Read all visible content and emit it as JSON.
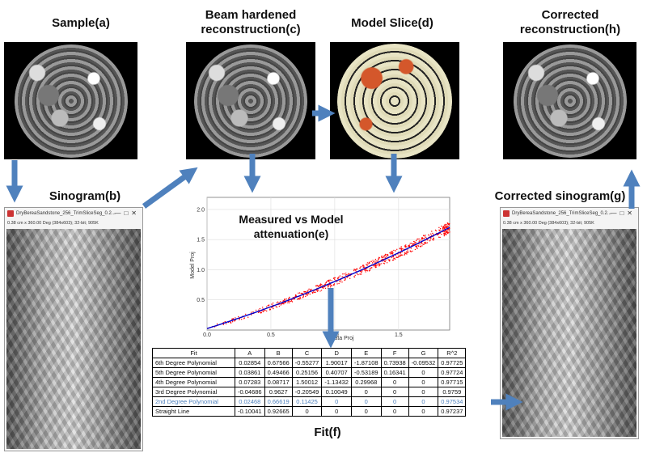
{
  "labels": {
    "sample": "Sample(a)",
    "beam1": "Beam hardened",
    "beam2": "reconstruction(c)",
    "model": "Model Slice(d)",
    "corr1": "Corrected",
    "corr2": "reconstruction(h)",
    "sinogram": "Sinogram(b)",
    "corr_sino": "Corrected sinogram(g)",
    "measured1": "Measured vs Model",
    "measured2": "attenuation(e)",
    "fit": "Fit(f)"
  },
  "windows": {
    "title": "DryBereaSandstone_256_TrimSliceSeg_0.2...",
    "info": "0.38 cm x 360.00 Deg (384x603); 32-bit; 905K",
    "controls": "—□✕"
  },
  "chart_data": {
    "type": "scatter",
    "xlabel": "Data Proj",
    "ylabel": "Model Proj",
    "xlim": [
      0,
      1.9
    ],
    "ylim": [
      0,
      2.2
    ],
    "xticks": [
      "0.0",
      "0.5",
      "1.0",
      "1.5"
    ],
    "yticks": [
      "0.5",
      "1.0",
      "1.5",
      "2.0"
    ],
    "grid": true,
    "points_series": {
      "name": "",
      "color": "#ff0000",
      "x_range": [
        0.0,
        1.95
      ]
    },
    "fit_line": {
      "name": "",
      "color": "#0000cc",
      "fit": "2nd Degree Polynomial",
      "coefficients": [
        0.02468,
        0.66619,
        0.11425
      ]
    }
  },
  "fit_table": {
    "headers": [
      "Fit",
      "A",
      "B",
      "C",
      "D",
      "E",
      "F",
      "G",
      "R^2"
    ],
    "rows": [
      [
        "6th Degree Polynomial",
        "0.02854",
        "0.67566",
        "-0.55277",
        "1.90017",
        "-1.87108",
        "0.73938",
        "-0.09532",
        "0.97725"
      ],
      [
        "5th Degree Polynomial",
        "0.03861",
        "0.49466",
        "0.25156",
        "0.40707",
        "-0.53189",
        "0.16341",
        "0",
        "0.97724"
      ],
      [
        "4th Degree Polynomial",
        "0.07283",
        "0.08717",
        "1.50012",
        "-1.13432",
        "0.29968",
        "0",
        "0",
        "0.97715"
      ],
      [
        "3rd Degree Polynomial",
        "-0.04686",
        "0.9627",
        "-0.20549",
        "0.10049",
        "0",
        "0",
        "0",
        "0.9759"
      ],
      [
        "2nd Degree Polynomial",
        "0.02468",
        "0.66619",
        "0.11425",
        "0",
        "0",
        "0",
        "0",
        "0.97534"
      ],
      [
        "Straight Line",
        "-0.10041",
        "0.92665",
        "0",
        "0",
        "0",
        "0",
        "0",
        "0.97237"
      ]
    ],
    "highlight_row": 4
  }
}
